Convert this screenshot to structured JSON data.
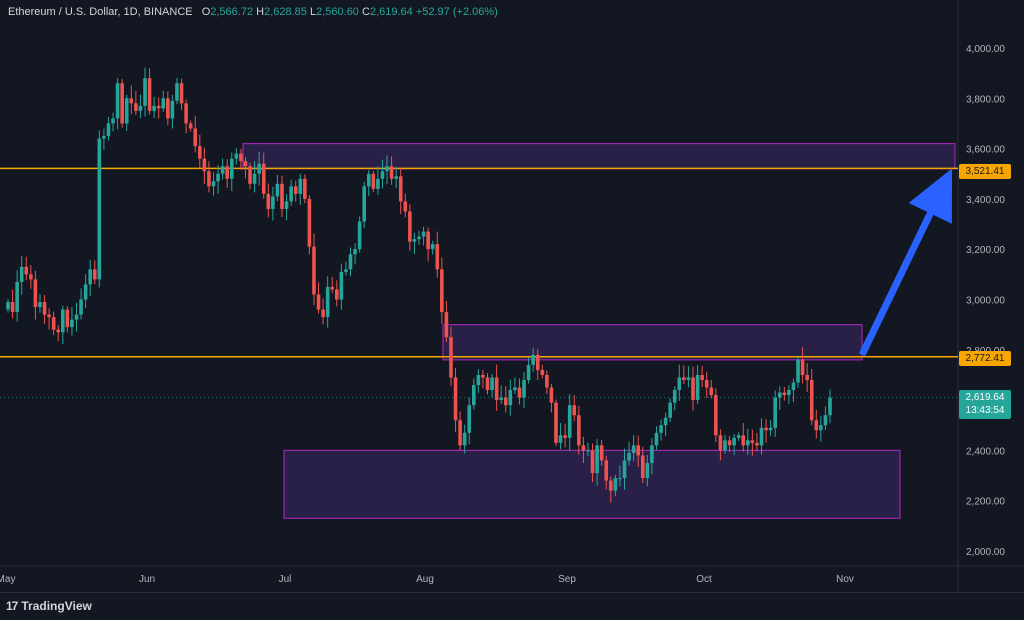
{
  "header": {
    "title": "Ethereum / U.S. Dollar, 1D, BINANCE",
    "open_label": "O",
    "open_value": "2,566.72",
    "high_label": "H",
    "high_value": "2,628.85",
    "low_label": "L",
    "low_value": "2,560.60",
    "close_label": "C",
    "close_value": "2,619.64",
    "change": "+52.97 (+2.06%)"
  },
  "price_lines": {
    "upper": "3,521.41",
    "lower": "2,772.41"
  },
  "live_price": {
    "price": "2,619.64",
    "countdown": "13:43:54"
  },
  "footer": {
    "brand": "TradingView"
  },
  "colors": {
    "background": "#131722",
    "up": "#26a69a",
    "down": "#ef5350",
    "level_line": "#f7a600",
    "zone_border": "#9c27b0",
    "zone_fill": "rgba(103,58,183,0.25)",
    "arrow": "#2962ff"
  },
  "chart_data": {
    "type": "candlestick",
    "symbol": "ETHUSD",
    "timeframe": "1D",
    "y_axis": {
      "ticks": [
        2000,
        2200,
        2400,
        2600,
        2800,
        3000,
        3200,
        3400,
        3600,
        3800,
        4000
      ],
      "tick_labels": [
        "2,000.00",
        "2,200.00",
        "2,400.00",
        "2,600.00",
        "2,800.00",
        "3,000.00",
        "3,200.00",
        "3,400.00",
        "3,600.00",
        "3,800.00",
        "4,000.00"
      ],
      "range": [
        1940,
        4120
      ]
    },
    "x_axis": {
      "labels": [
        "May",
        "Jun",
        "Jul",
        "Aug",
        "Sep",
        "Oct",
        "Nov"
      ]
    },
    "start_close": 2960,
    "closes": [
      2990,
      2950,
      3070,
      3130,
      3100,
      3080,
      2970,
      2990,
      2940,
      2930,
      2880,
      2870,
      2960,
      2890,
      2920,
      2940,
      3000,
      3060,
      3120,
      3080,
      3640,
      3650,
      3700,
      3720,
      3860,
      3700,
      3800,
      3780,
      3750,
      3770,
      3880,
      3750,
      3770,
      3760,
      3800,
      3720,
      3790,
      3860,
      3780,
      3700,
      3680,
      3610,
      3560,
      3510,
      3450,
      3470,
      3500,
      3530,
      3480,
      3560,
      3580,
      3550,
      3530,
      3460,
      3500,
      3540,
      3420,
      3360,
      3410,
      3460,
      3360,
      3390,
      3450,
      3420,
      3480,
      3400,
      3210,
      3020,
      2960,
      2930,
      3050,
      3040,
      3000,
      3110,
      3120,
      3180,
      3200,
      3310,
      3450,
      3500,
      3440,
      3480,
      3510,
      3530,
      3480,
      3490,
      3390,
      3350,
      3230,
      3240,
      3250,
      3270,
      3200,
      3220,
      3120,
      2950,
      2850,
      2690,
      2520,
      2420,
      2470,
      2580,
      2660,
      2700,
      2690,
      2640,
      2690,
      2600,
      2610,
      2580,
      2640,
      2650,
      2610,
      2680,
      2740,
      2780,
      2720,
      2700,
      2650,
      2590,
      2430,
      2460,
      2450,
      2580,
      2540,
      2420,
      2400,
      2400,
      2310,
      2420,
      2360,
      2280,
      2240,
      2290,
      2290,
      2360,
      2390,
      2420,
      2380,
      2290,
      2350,
      2420,
      2470,
      2500,
      2530,
      2590,
      2640,
      2690,
      2680,
      2690,
      2600,
      2700,
      2680,
      2650,
      2620,
      2460,
      2400,
      2440,
      2420,
      2450,
      2460,
      2420,
      2440,
      2430,
      2420,
      2490,
      2480,
      2490,
      2610,
      2630,
      2620,
      2640,
      2670,
      2760,
      2700,
      2680,
      2520,
      2480,
      2500,
      2540,
      2610
    ],
    "annotations": {
      "horizontal_levels": [
        3521.41,
        2772.41
      ],
      "zones": [
        {
          "low": 3520,
          "high": 3620
        },
        {
          "low": 2760,
          "high": 2900
        },
        {
          "low": 2130,
          "high": 2400
        }
      ],
      "arrow": {
        "from_price": 2780,
        "to_price": 3521.41
      }
    }
  }
}
